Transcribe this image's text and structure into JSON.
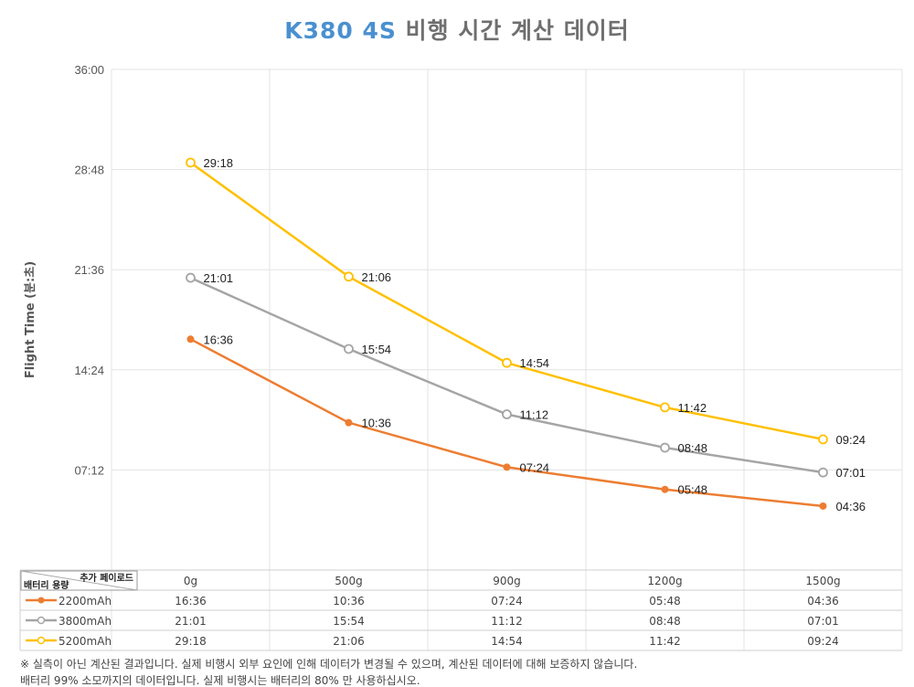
{
  "title": {
    "highlight": "K380 4S",
    "rest": " 비행 시간 계산 데이터"
  },
  "chart_data": {
    "type": "line",
    "title": "K380 4S 비행 시간 계산 데이터",
    "ylabel": "Flight Time (분:초)",
    "xlabel": "",
    "categories": [
      "0g",
      "500g",
      "900g",
      "1200g",
      "1500g"
    ],
    "yticks": [
      "07:12",
      "14:24",
      "21:36",
      "28:48",
      "36:00"
    ],
    "ylim": [
      "00:00",
      "36:00"
    ],
    "grid": true,
    "series": [
      {
        "name": "2200mAh",
        "color": "#ed7d31",
        "marker": "filled",
        "values": [
          "16:36",
          "10:36",
          "07:24",
          "05:48",
          "04:36"
        ]
      },
      {
        "name": "3800mAh",
        "color": "#a5a5a5",
        "marker": "open",
        "values": [
          "21:01",
          "15:54",
          "11:12",
          "08:48",
          "07:01"
        ]
      },
      {
        "name": "5200mAh",
        "color": "#ffc000",
        "marker": "open",
        "values": [
          "29:18",
          "21:06",
          "14:54",
          "11:42",
          "09:24"
        ]
      }
    ],
    "table": {
      "corner_top": "추가 페이로드",
      "corner_bottom": "배터리 용량"
    }
  },
  "notes": [
    "※ 실측이 아닌 계산된 결과입니다. 실제 비행시 외부 요인에 인해 데이터가 변경될 수 있으며, 계산된 데이터에 대해 보증하지 않습니다.",
    "배터리 99% 소모까지의 데이터입니다. 실제 비행시는 배터리의 80% 만 사용하십시오."
  ]
}
